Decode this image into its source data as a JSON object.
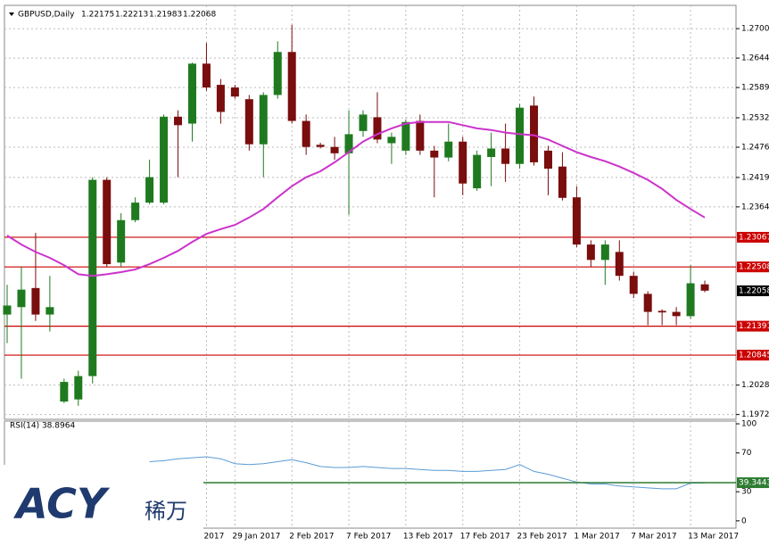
{
  "chart_data": {
    "type": "candlestick",
    "title": "GBPUSD,Daily",
    "ohlc_header": [
      "1.22175",
      "1.22213",
      "1.21983",
      "1.22068"
    ],
    "categories": [
      null,
      null,
      null,
      null,
      null,
      null,
      null,
      null,
      null,
      null,
      null,
      null,
      null,
      null,
      "2017",
      null,
      "29 Jan 2017",
      null,
      null,
      null,
      "2 Feb 2017",
      null,
      null,
      null,
      "7 Feb 2017",
      null,
      null,
      null,
      "13 Feb 2017",
      null,
      null,
      null,
      "17 Feb 2017",
      null,
      null,
      null,
      "23 Feb 2017",
      null,
      null,
      null,
      "1 Mar 2017",
      null,
      null,
      null,
      "7 Mar 2017",
      null,
      null,
      null,
      "13 Mar 2017",
      null
    ],
    "open": [
      1.2161,
      1.2175,
      1.2211,
      1.2161,
      1.1997,
      1.2001,
      1.2045,
      1.2415,
      1.2259,
      1.2339,
      1.2372,
      1.2372,
      1.2534,
      1.2521,
      1.2634,
      1.2594,
      1.2589,
      1.2567,
      1.2482,
      1.2575,
      1.2656,
      1.2526,
      1.2481,
      1.2477,
      1.2465,
      1.2507,
      1.2533,
      1.2484,
      1.247,
      1.2526,
      1.247,
      1.2457,
      1.2487,
      1.2399,
      1.2458,
      1.2474,
      1.2445,
      1.2555,
      1.247,
      1.244,
      1.2382,
      1.2293,
      1.2264,
      1.2279,
      1.2234,
      1.22,
      1.2168,
      1.2166,
      1.2158,
      1.2218
    ],
    "high": [
      1.2217,
      1.2251,
      1.2315,
      1.2234,
      1.204,
      1.2055,
      1.242,
      1.242,
      1.2352,
      1.2382,
      1.2453,
      1.2538,
      1.2546,
      1.2636,
      1.2673,
      1.2605,
      1.2594,
      1.2575,
      1.258,
      1.2676,
      1.2707,
      1.2538,
      1.2485,
      1.2496,
      1.2546,
      1.2546,
      1.258,
      1.2504,
      1.2529,
      1.2538,
      1.2479,
      1.2521,
      1.2496,
      1.247,
      1.2504,
      1.2521,
      1.2558,
      1.2572,
      1.2479,
      1.2467,
      1.2403,
      1.2301,
      1.2301,
      1.2301,
      1.2242,
      1.2205,
      1.2171,
      1.2175,
      1.2254,
      1.2225
    ],
    "low": [
      1.2107,
      1.204,
      1.2149,
      1.2129,
      1.1994,
      1.1989,
      1.2031,
      1.2251,
      1.2251,
      1.2335,
      1.2369,
      1.2369,
      1.242,
      1.2487,
      1.2583,
      1.2521,
      1.2568,
      1.247,
      1.242,
      1.2568,
      1.2521,
      1.2462,
      1.2474,
      1.2453,
      1.2349,
      1.2496,
      1.2484,
      1.2445,
      1.2462,
      1.2462,
      1.2382,
      1.245,
      1.2386,
      1.2394,
      1.2403,
      1.2411,
      1.2436,
      1.2442,
      1.2386,
      1.2376,
      1.2288,
      1.2251,
      1.2217,
      1.2225,
      1.2192,
      1.2141,
      1.2141,
      1.2141,
      1.2153,
      1.2203
    ],
    "close": [
      1.2178,
      1.2208,
      1.2161,
      1.2175,
      1.2034,
      1.2045,
      1.2415,
      1.2256,
      1.2339,
      1.2372,
      1.242,
      1.2534,
      1.2518,
      1.2634,
      1.2589,
      1.2543,
      1.2572,
      1.2482,
      1.2575,
      1.2656,
      1.2526,
      1.2477,
      1.2477,
      1.2465,
      1.2501,
      1.2538,
      1.2491,
      1.2496,
      1.2524,
      1.247,
      1.2457,
      1.2487,
      1.2408,
      1.2462,
      1.2474,
      1.2445,
      1.2551,
      1.2448,
      1.2436,
      1.2381,
      1.2293,
      1.2264,
      1.2293,
      1.2234,
      1.22,
      1.2166,
      1.2165,
      1.2158,
      1.222,
      1.2206
    ],
    "up_color": "#1f7a1f",
    "down_color": "#7a0d0d",
    "ylim": [
      1.19635,
      1.27439
    ],
    "yticks": [
      {
        "value": 1.27,
        "label": "1.27000"
      },
      {
        "value": 1.26445,
        "label": "1.26445"
      },
      {
        "value": 1.2589,
        "label": "1.25890"
      },
      {
        "value": 1.2532,
        "label": "1.25320"
      },
      {
        "value": 1.24765,
        "label": "1.24765"
      },
      {
        "value": 1.24195,
        "label": "1.24195"
      },
      {
        "value": 1.2364,
        "label": "1.23640"
      },
      {
        "value": 1.2028,
        "label": "1.20280"
      },
      {
        "value": 1.19725,
        "label": "1.19725"
      }
    ],
    "grid": true,
    "ma": {
      "color": "#cc33cc",
      "values": [
        1.231,
        1.2293,
        1.2279,
        1.2268,
        1.2254,
        1.2237,
        1.2234,
        1.2237,
        1.2241,
        1.2246,
        1.2256,
        1.2268,
        1.2281,
        1.2298,
        1.2313,
        1.2322,
        1.233,
        1.2344,
        1.236,
        1.2382,
        1.2403,
        1.242,
        1.2431,
        1.2448,
        1.2467,
        1.2487,
        1.2501,
        1.2512,
        1.2521,
        1.2524,
        1.2524,
        1.2524,
        1.2518,
        1.2512,
        1.2509,
        1.2504,
        1.2501,
        1.2499,
        1.2491,
        1.2479,
        1.2467,
        1.2458,
        1.245,
        1.244,
        1.2428,
        1.2415,
        1.2398,
        1.2377,
        1.236,
        1.2344
      ]
    },
    "levels": [
      {
        "value": 1.23067,
        "label": "1.23067"
      },
      {
        "value": 1.22508,
        "label": "1.22508"
      },
      {
        "value": 1.21391,
        "label": "1.21391"
      },
      {
        "value": 1.20845,
        "label": "1.20845"
      }
    ],
    "level_color": "#cc0000",
    "current": {
      "value": 1.22058,
      "label": "1.22058"
    },
    "rsi": {
      "title": "RSI(14) 38.8964",
      "color": "#5a9bd5",
      "values": [
        null,
        null,
        null,
        null,
        null,
        null,
        null,
        null,
        null,
        null,
        61,
        62,
        64,
        65,
        66,
        64,
        59,
        58,
        59,
        61,
        63,
        60,
        56,
        55,
        55,
        56,
        55,
        54,
        54,
        53,
        52,
        52,
        51,
        51,
        52,
        53,
        58,
        51,
        48,
        44,
        40,
        38,
        38,
        36,
        35,
        34,
        33,
        33,
        39,
        39
      ],
      "ylim": [
        -7.5,
        102.8
      ],
      "yticks": [
        100,
        70,
        30,
        0
      ],
      "level": {
        "value": 39.3443,
        "label": "39.3443"
      },
      "level_color": "#2e7d32"
    }
  },
  "watermark": {
    "brand": "ACY",
    "cn": "稀万"
  }
}
